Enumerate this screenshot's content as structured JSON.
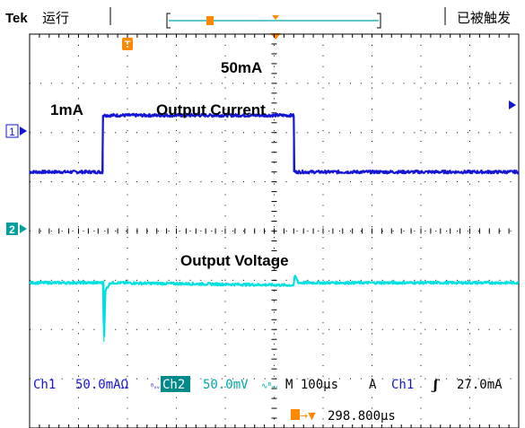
{
  "header": {
    "brand": "Tek",
    "run_state": "运行",
    "trigger_state": "已被触发"
  },
  "annotations": {
    "level_high": "50mA",
    "level_low": "1mA",
    "output_current": "Output Current",
    "output_voltage": "Output Voltage"
  },
  "readout": {
    "ch1_label": "Ch1",
    "ch1_scale": "50.0mAΩ",
    "ch1_bw": "ᴮᵥᵥ",
    "ch2_label": "Ch2",
    "ch2_scale": "50.0mV",
    "ch2_coupling": "∿ᴮᵥᵥ",
    "timebase": "M 100µs",
    "trigger_mode": "A",
    "trigger_source": "Ch1",
    "trigger_slope": "ʃ",
    "trigger_level": "27.0mA",
    "trigger_position": "298.800µs",
    "trigger_arrow": "→▼"
  },
  "markers": {
    "ch1_marker": "1",
    "ch2_marker": "2",
    "trigger_marker": "T"
  },
  "colors": {
    "ch1": "#1515d4",
    "ch2": "#00e0e0",
    "trigger": "#ff8800",
    "ch2_badge_bg": "#008a8a",
    "grid": "#000000"
  },
  "chart_data": {
    "type": "line",
    "grid": {
      "horizontal_divisions": 10,
      "vertical_divisions": 8
    },
    "x_unit": "division",
    "xlim": [
      0,
      10
    ],
    "series": [
      {
        "name": "Ch1",
        "description": "step from 1mA to 50mA and back",
        "points": [
          [
            0,
            -0.1
          ],
          [
            1.5,
            -0.1
          ],
          [
            1.5,
            1.05
          ],
          [
            5.4,
            1.05
          ],
          [
            5.4,
            -0.1
          ],
          [
            10,
            -0.1
          ]
        ],
        "noise": 0.03
      },
      {
        "name": "Ch2",
        "description": "voltage with transient undershoot and ringing",
        "points": [
          [
            0,
            -0.05
          ],
          [
            1.5,
            -0.05
          ],
          [
            1.52,
            -1.25
          ],
          [
            1.55,
            -0.2
          ],
          [
            1.65,
            -0.05
          ],
          [
            5.4,
            -0.1
          ],
          [
            5.42,
            0.1
          ],
          [
            5.5,
            -0.05
          ],
          [
            10,
            -0.05
          ]
        ],
        "noise": 0.025
      }
    ]
  }
}
